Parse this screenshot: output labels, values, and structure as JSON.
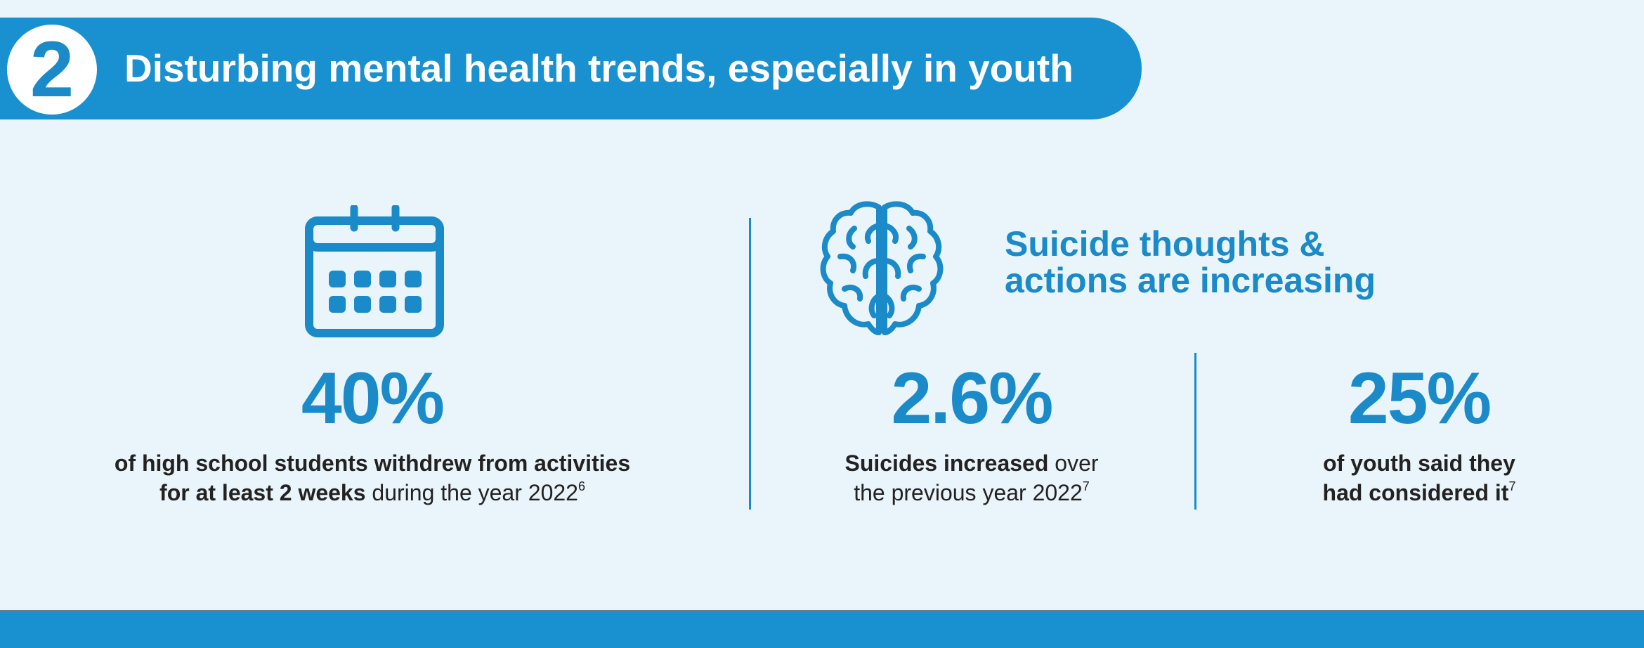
{
  "header": {
    "number": "2",
    "title": "Disturbing mental health trends, especially in youth"
  },
  "icons": {
    "calendar": "calendar-icon",
    "brain": "brain-icon"
  },
  "colors": {
    "accent": "#1a8ac9",
    "background": "#eaf4fb",
    "text": "#222222"
  },
  "stat_withdrawal": {
    "value": "40%",
    "desc_bold_line1": "of high school students withdrew from activities",
    "desc_bold_line2": "for at least 2 weeks",
    "desc_regular_line2": " during the year 2022",
    "footnote": "6"
  },
  "suicide_section": {
    "title_line1": "Suicide thoughts &",
    "title_line2": "actions are increasing"
  },
  "stat_suicides": {
    "value": "2.6%",
    "desc_bold_line1": "Suicides increased",
    "desc_regular_line1": " over",
    "desc_regular_line2": "the previous year 2022",
    "footnote": "7"
  },
  "stat_considered": {
    "value": "25%",
    "desc_bold_line1": "of youth said they",
    "desc_bold_line2": "had considered it",
    "footnote": "7"
  }
}
